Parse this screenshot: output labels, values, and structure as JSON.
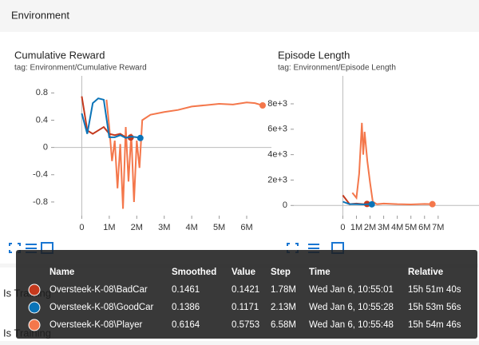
{
  "section": {
    "title": "Environment",
    "below": [
      "Is Training",
      "Is Training"
    ]
  },
  "panels": [
    {
      "type": "line",
      "title": "Cumulative Reward",
      "tag": "tag: Environment/Cumulative Reward",
      "xlim": [
        -1000000,
        6900000
      ],
      "ylim": [
        -1,
        1.05
      ],
      "xticks": [
        {
          "value": 0,
          "label": "0"
        },
        {
          "value": 1000000,
          "label": "1M"
        },
        {
          "value": 2000000,
          "label": "2M"
        },
        {
          "value": 3000000,
          "label": "3M"
        },
        {
          "value": 4000000,
          "label": "4M"
        },
        {
          "value": 5000000,
          "label": "5M"
        },
        {
          "value": 6000000,
          "label": "6M"
        }
      ],
      "yticks": [
        0.8,
        0.4,
        0,
        -0.4,
        -0.8
      ],
      "series": [
        {
          "name": "Oversteek-K-08\\Player",
          "color": "#f4774b",
          "x": [
            900000,
            1000000,
            1100000,
            1200000,
            1300000,
            1400000,
            1500000,
            1600000,
            1700000,
            1800000,
            1900000,
            2000000,
            2100000,
            2200000,
            2500000,
            3000000,
            3500000,
            4000000,
            4500000,
            5000000,
            5500000,
            6000000,
            6300000,
            6580000
          ],
          "values": [
            0.7,
            0.3,
            -0.2,
            0.1,
            -0.6,
            0.05,
            -0.9,
            0.3,
            -0.5,
            0.2,
            -0.8,
            0.1,
            -0.3,
            0.4,
            0.48,
            0.52,
            0.55,
            0.6,
            0.62,
            0.64,
            0.63,
            0.66,
            0.65,
            0.6164
          ]
        },
        {
          "name": "Oversteek-K-08\\BadCar",
          "color": "#c4391d",
          "x": [
            0,
            200000,
            400000,
            600000,
            800000,
            1000000,
            1200000,
            1400000,
            1600000,
            1780000
          ],
          "values": [
            0.75,
            0.25,
            0.2,
            0.25,
            0.3,
            0.2,
            0.18,
            0.2,
            0.15,
            0.1461
          ]
        },
        {
          "name": "Oversteek-K-08\\GoodCar",
          "color": "#0b74b8",
          "x": [
            0,
            200000,
            400000,
            600000,
            800000,
            1000000,
            1200000,
            1400000,
            1600000,
            1800000,
            2000000,
            2130000
          ],
          "values": [
            0.5,
            0.2,
            0.65,
            0.72,
            0.7,
            0.15,
            0.15,
            0.18,
            0.14,
            0.16,
            0.15,
            0.1386
          ]
        }
      ]
    },
    {
      "type": "line",
      "title": "Episode Length",
      "tag": "tag: Environment/Episode Length",
      "xlim": [
        -3600000,
        10000000
      ],
      "ylim": [
        -800,
        10200
      ],
      "xticks": [
        {
          "value": 0,
          "label": "0"
        },
        {
          "value": 1000000,
          "label": "1M"
        },
        {
          "value": 2000000,
          "label": "2M"
        },
        {
          "value": 3000000,
          "label": "3M"
        },
        {
          "value": 4000000,
          "label": "4M"
        },
        {
          "value": 5000000,
          "label": "5M"
        },
        {
          "value": 6000000,
          "label": "6M"
        },
        {
          "value": 7000000,
          "label": "7M"
        }
      ],
      "yticks": [
        {
          "value": 8000,
          "label": "8e+3"
        },
        {
          "value": 6000,
          "label": "6e+3"
        },
        {
          "value": 4000,
          "label": "4e+3"
        },
        {
          "value": 2000,
          "label": "2e+3"
        },
        0
      ],
      "series": [
        {
          "name": "Oversteek-K-08\\Player",
          "color": "#f4774b",
          "x": [
            700000,
            1000000,
            1200000,
            1400000,
            1500000,
            1600000,
            1800000,
            2000000,
            2200000,
            2500000,
            3000000,
            4000000,
            5000000,
            6000000,
            6580000
          ],
          "values": [
            1000,
            600,
            2500,
            6500,
            4000,
            5800,
            3500,
            1800,
            300,
            100,
            150,
            100,
            80,
            120,
            100
          ]
        },
        {
          "name": "Oversteek-K-08\\BadCar",
          "color": "#c4391d",
          "x": [
            0,
            500000,
            1000000,
            1500000,
            1780000
          ],
          "values": [
            800,
            100,
            150,
            100,
            120
          ]
        },
        {
          "name": "Oversteek-K-08\\GoodCar",
          "color": "#0b74b8",
          "x": [
            0,
            500000,
            1000000,
            1500000,
            2000000,
            2130000
          ],
          "values": [
            300,
            100,
            100,
            80,
            100,
            90
          ]
        }
      ]
    }
  ],
  "tooltip": {
    "headers": [
      "Name",
      "Smoothed",
      "Value",
      "Step",
      "Time",
      "Relative"
    ],
    "rows": [
      {
        "color": "#c4391d",
        "cells": [
          "Oversteek-K-08\\BadCar",
          0.1461,
          0.1421,
          "1.78M",
          "Wed Jan 6, 10:55:01",
          "15h 51m 40s"
        ]
      },
      {
        "color": "#0b74b8",
        "cells": [
          "Oversteek-K-08\\GoodCar",
          0.1386,
          0.1171,
          "2.13M",
          "Wed Jan 6, 10:55:28",
          "15h 53m 56s"
        ]
      },
      {
        "color": "#f4774b",
        "cells": [
          "Oversteek-K-08\\Player",
          0.6164,
          0.5753,
          "6.58M",
          "Wed Jan 6, 10:55:48",
          "15h 54m 46s"
        ]
      }
    ]
  }
}
